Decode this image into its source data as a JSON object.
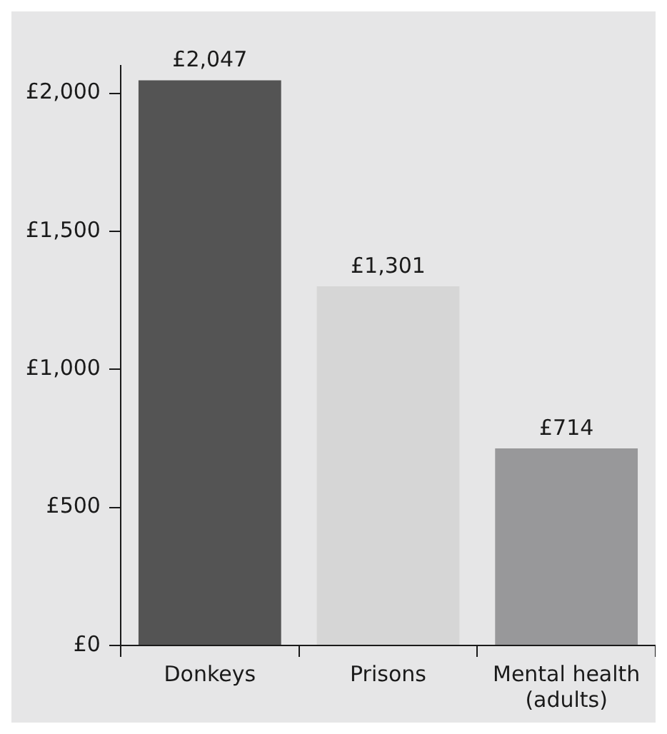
{
  "chart_data": {
    "type": "bar",
    "categories": [
      "Donkeys",
      "Prisons",
      "Mental health (adults)"
    ],
    "values": [
      2047,
      1301,
      714
    ],
    "colors": [
      "#545454",
      "#d6d6d6",
      "#98989a"
    ],
    "value_labels": [
      "£2,047",
      "£1,301",
      "£714"
    ],
    "ylim": [
      0,
      2100
    ],
    "yticks": [
      {
        "value": 0,
        "label": "£0"
      },
      {
        "value": 500,
        "label": "£500"
      },
      {
        "value": 1000,
        "label": "£1,000"
      },
      {
        "value": 1500,
        "label": "£1,500"
      },
      {
        "value": 2000,
        "label": "£2,000"
      }
    ],
    "grid": false,
    "legend": false
  }
}
